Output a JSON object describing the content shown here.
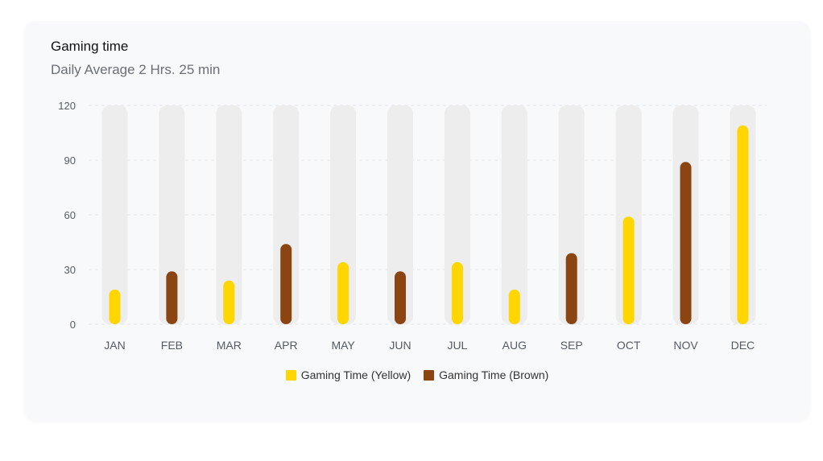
{
  "card": {
    "title": "Gaming time",
    "subtitle": "Daily Average 2 Hrs. 25 min"
  },
  "chart_data": {
    "type": "bar",
    "categories": [
      "JAN",
      "FEB",
      "MAR",
      "APR",
      "MAY",
      "JUN",
      "JUL",
      "AUG",
      "SEP",
      "OCT",
      "NOV",
      "DEC"
    ],
    "values": [
      19,
      29,
      24,
      44,
      34,
      29,
      34,
      19,
      39,
      59,
      89,
      109
    ],
    "bar_colors": [
      "yellow",
      "brown",
      "yellow",
      "brown",
      "yellow",
      "brown",
      "yellow",
      "yellow",
      "brown",
      "yellow",
      "brown",
      "yellow"
    ],
    "yticks": [
      0,
      30,
      60,
      90,
      120
    ],
    "ylim": [
      0,
      120
    ],
    "grid": true,
    "legend_position": "bottom",
    "series": [
      {
        "name": "Gaming Time (Yellow)",
        "color": "#FFD600"
      },
      {
        "name": "Gaming Time (Brown)",
        "color": "#8B4513"
      }
    ],
    "track_color": "#ededed",
    "xlabel": "",
    "ylabel": ""
  }
}
